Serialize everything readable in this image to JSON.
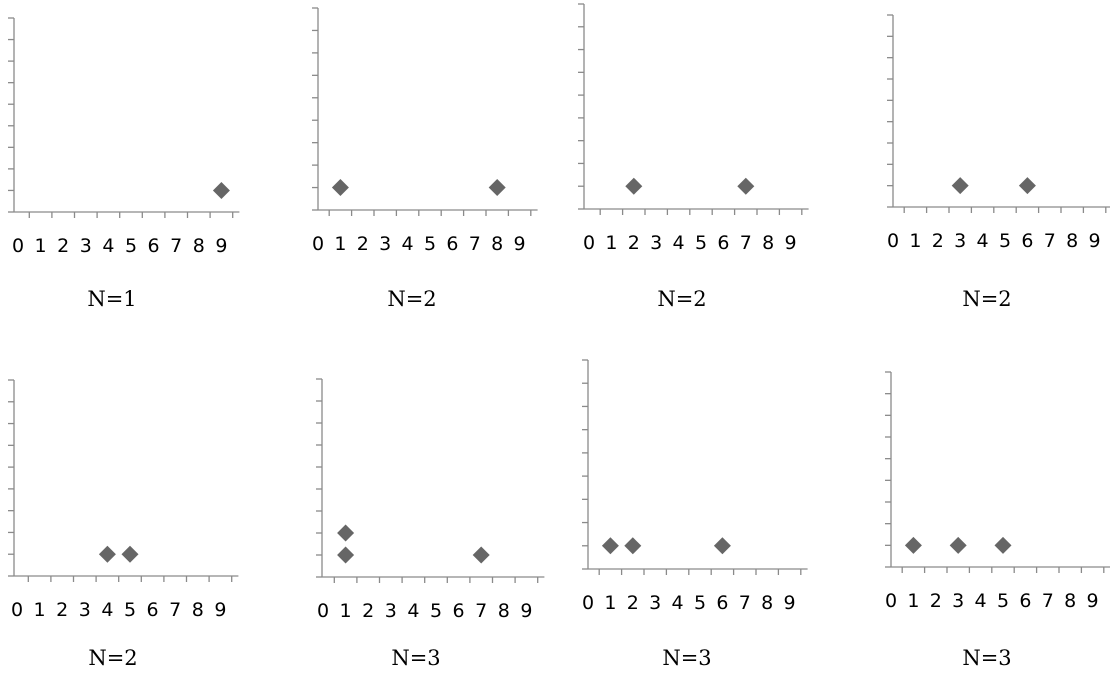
{
  "chart_data": [
    {
      "type": "scatter",
      "caption": "N=1",
      "xlim": [
        0,
        9
      ],
      "ylim": [
        0,
        9
      ],
      "x_tick_labels": [
        "0",
        "1",
        "2",
        "3",
        "4",
        "5",
        "6",
        "7",
        "8",
        "9"
      ],
      "points": [
        {
          "x": 9,
          "y": 1
        }
      ]
    },
    {
      "type": "scatter",
      "caption": "N=2",
      "xlim": [
        0,
        9
      ],
      "ylim": [
        0,
        9
      ],
      "x_tick_labels": [
        "0",
        "1",
        "2",
        "3",
        "4",
        "5",
        "6",
        "7",
        "8",
        "9"
      ],
      "points": [
        {
          "x": 1,
          "y": 1
        },
        {
          "x": 8,
          "y": 1
        }
      ]
    },
    {
      "type": "scatter",
      "caption": "N=2",
      "xlim": [
        0,
        9
      ],
      "ylim": [
        0,
        9
      ],
      "x_tick_labels": [
        "0",
        "1",
        "2",
        "3",
        "4",
        "5",
        "6",
        "7",
        "8",
        "9"
      ],
      "points": [
        {
          "x": 2,
          "y": 1
        },
        {
          "x": 7,
          "y": 1
        }
      ]
    },
    {
      "type": "scatter",
      "caption": "N=2",
      "xlim": [
        0,
        9
      ],
      "ylim": [
        0,
        9
      ],
      "x_tick_labels": [
        "0",
        "1",
        "2",
        "3",
        "4",
        "5",
        "6",
        "7",
        "8",
        "9"
      ],
      "points": [
        {
          "x": 3,
          "y": 1
        },
        {
          "x": 6,
          "y": 1
        }
      ]
    },
    {
      "type": "scatter",
      "caption": "N=2",
      "xlim": [
        0,
        9
      ],
      "ylim": [
        0,
        9
      ],
      "x_tick_labels": [
        "0",
        "1",
        "2",
        "3",
        "4",
        "5",
        "6",
        "7",
        "8",
        "9"
      ],
      "points": [
        {
          "x": 4,
          "y": 1
        },
        {
          "x": 5,
          "y": 1
        }
      ]
    },
    {
      "type": "scatter",
      "caption": "N=3",
      "xlim": [
        0,
        9
      ],
      "ylim": [
        0,
        9
      ],
      "x_tick_labels": [
        "0",
        "1",
        "2",
        "3",
        "4",
        "5",
        "6",
        "7",
        "8",
        "9"
      ],
      "points": [
        {
          "x": 1,
          "y": 1
        },
        {
          "x": 1,
          "y": 2
        },
        {
          "x": 7,
          "y": 1
        }
      ]
    },
    {
      "type": "scatter",
      "caption": "N=3",
      "xlim": [
        0,
        9
      ],
      "ylim": [
        0,
        9
      ],
      "x_tick_labels": [
        "0",
        "1",
        "2",
        "3",
        "4",
        "5",
        "6",
        "7",
        "8",
        "9"
      ],
      "points": [
        {
          "x": 1,
          "y": 1
        },
        {
          "x": 2,
          "y": 1
        },
        {
          "x": 6,
          "y": 1
        }
      ]
    },
    {
      "type": "scatter",
      "caption": "N=3",
      "xlim": [
        0,
        9
      ],
      "ylim": [
        0,
        9
      ],
      "x_tick_labels": [
        "0",
        "1",
        "2",
        "3",
        "4",
        "5",
        "6",
        "7",
        "8",
        "9"
      ],
      "points": [
        {
          "x": 1,
          "y": 1
        },
        {
          "x": 3,
          "y": 1
        },
        {
          "x": 5,
          "y": 1
        }
      ]
    }
  ],
  "colors": {
    "marker": "#666666",
    "axis": "#8a8a8a"
  }
}
